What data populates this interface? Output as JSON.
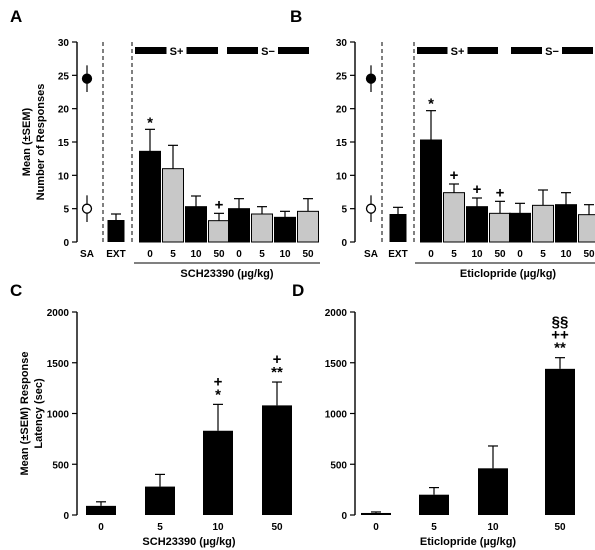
{
  "chart_data": [
    {
      "panel": "A",
      "type": "bar",
      "ylabel": [
        "Mean (±SEM)",
        "Number of Responses"
      ],
      "xlabel": "SCH23390 (µg/kg)",
      "ylim": [
        0,
        30
      ],
      "yticks": [
        0,
        5,
        10,
        15,
        20,
        25,
        30
      ],
      "sa": {
        "label": "SA",
        "filled": {
          "mean": 24.5,
          "sem": 2.0
        },
        "open": {
          "mean": 5.0,
          "sem": 2.0
        }
      },
      "ext": {
        "label": "EXT",
        "mean": 3.3,
        "sem": 0.9
      },
      "groups": [
        {
          "label": "S+",
          "doses": [
            "0",
            "5",
            "10",
            "50"
          ],
          "means": [
            13.6,
            11.0,
            5.3,
            3.2
          ],
          "sems": [
            3.3,
            3.5,
            1.6,
            1.1
          ],
          "marks": [
            "*",
            "",
            "",
            "+"
          ]
        },
        {
          "label": "S−",
          "doses": [
            "0",
            "5",
            "10",
            "50"
          ],
          "means": [
            5.0,
            4.2,
            3.7,
            4.6
          ],
          "sems": [
            1.5,
            1.1,
            0.9,
            1.9
          ],
          "marks": [
            "",
            "",
            "",
            ""
          ]
        }
      ]
    },
    {
      "panel": "B",
      "type": "bar",
      "ylabel": [],
      "xlabel": "Eticlopride (µg/kg)",
      "ylim": [
        0,
        30
      ],
      "yticks": [
        0,
        5,
        10,
        15,
        20,
        25,
        30
      ],
      "sa": {
        "label": "SA",
        "filled": {
          "mean": 24.5,
          "sem": 2.0
        },
        "open": {
          "mean": 5.0,
          "sem": 2.0
        }
      },
      "ext": {
        "label": "EXT",
        "mean": 4.2,
        "sem": 1.0
      },
      "groups": [
        {
          "label": "S+",
          "doses": [
            "0",
            "5",
            "10",
            "50"
          ],
          "means": [
            15.3,
            7.4,
            5.3,
            4.3
          ],
          "sems": [
            4.4,
            1.3,
            1.3,
            1.8
          ],
          "marks": [
            "*",
            "+",
            "+",
            "+"
          ]
        },
        {
          "label": "S−",
          "doses": [
            "0",
            "5",
            "10",
            "50"
          ],
          "means": [
            4.3,
            5.5,
            5.6,
            4.1
          ],
          "sems": [
            1.5,
            2.3,
            1.8,
            1.5
          ],
          "marks": [
            "",
            "",
            "",
            ""
          ]
        }
      ]
    },
    {
      "panel": "C",
      "type": "bar",
      "ylabel": [
        "Mean (±SEM) Response",
        "Latency (sec)"
      ],
      "xlabel": "SCH23390 (µg/kg)",
      "ylim": [
        0,
        2000
      ],
      "yticks": [
        0,
        500,
        1000,
        1500,
        2000
      ],
      "categories": [
        "0",
        "5",
        "10",
        "50"
      ],
      "values": [
        90,
        280,
        830,
        1080
      ],
      "sems": [
        40,
        120,
        260,
        230
      ],
      "marks": [
        [],
        [],
        [
          "+",
          "*"
        ],
        [
          "+",
          "**"
        ]
      ]
    },
    {
      "panel": "D",
      "type": "bar",
      "ylabel": [],
      "xlabel": "Eticlopride (µg/kg)",
      "ylim": [
        0,
        2000
      ],
      "yticks": [
        0,
        500,
        1000,
        1500,
        2000
      ],
      "categories": [
        "0",
        "5",
        "10",
        "50"
      ],
      "values": [
        20,
        200,
        460,
        1440
      ],
      "sems": [
        10,
        70,
        220,
        110
      ],
      "marks": [
        [],
        [],
        [],
        [
          "§§",
          "++",
          "**"
        ]
      ]
    }
  ]
}
